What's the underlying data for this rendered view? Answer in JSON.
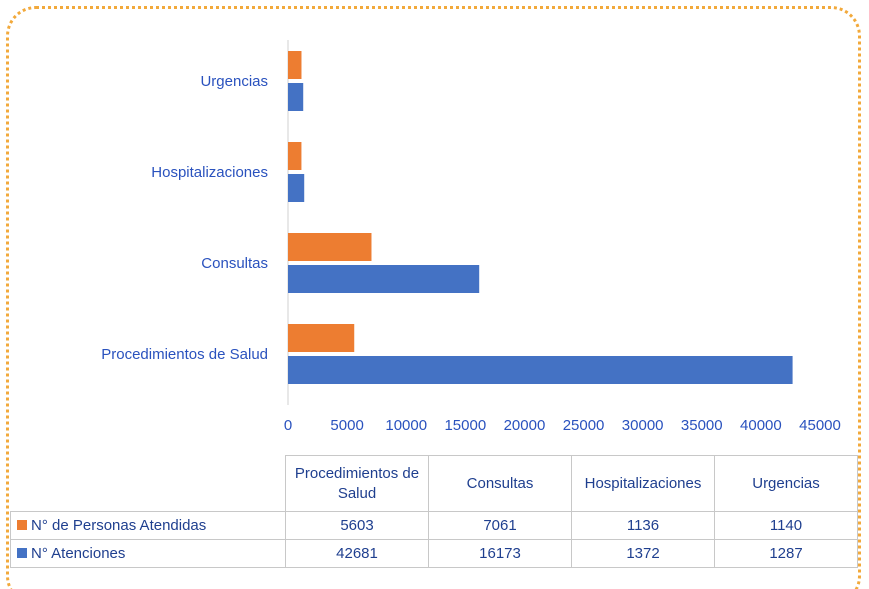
{
  "chart_data": {
    "type": "bar",
    "orientation": "horizontal",
    "categories": [
      "Procedimientos de Salud",
      "Consultas",
      "Hospitalizaciones",
      "Urgencias"
    ],
    "series": [
      {
        "name": "N° de Personas Atendidas",
        "color": "#ED7D31",
        "values": [
          5603,
          7061,
          1136,
          1140
        ]
      },
      {
        "name": "N° Atenciones",
        "color": "#4472C4",
        "values": [
          42681,
          16173,
          1372,
          1287
        ]
      }
    ],
    "xlim": [
      0,
      45000
    ],
    "xticks": [
      0,
      5000,
      10000,
      15000,
      20000,
      25000,
      30000,
      35000,
      40000,
      45000
    ],
    "grid": false
  }
}
